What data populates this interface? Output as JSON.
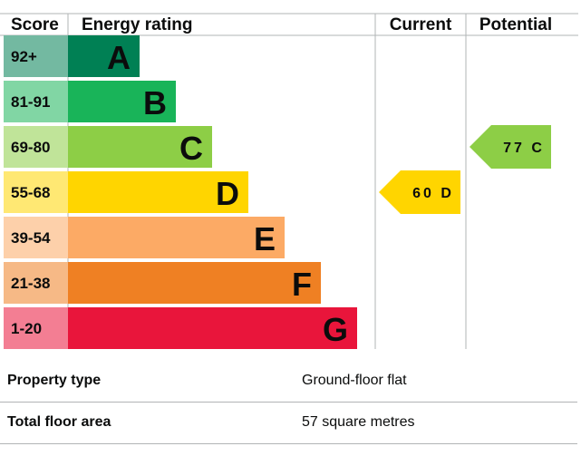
{
  "chart_data": {
    "type": "bar",
    "headers": {
      "score": "Score",
      "rating": "Energy rating",
      "current": "Current",
      "potential": "Potential"
    },
    "bands": [
      {
        "score": "92+",
        "letter": "A",
        "color": "#008054"
      },
      {
        "score": "81-91",
        "letter": "B",
        "color": "#19b459"
      },
      {
        "score": "69-80",
        "letter": "C",
        "color": "#8dce46"
      },
      {
        "score": "55-68",
        "letter": "D",
        "color": "#ffd500"
      },
      {
        "score": "39-54",
        "letter": "E",
        "color": "#fcaa65"
      },
      {
        "score": "21-38",
        "letter": "F",
        "color": "#ef8023"
      },
      {
        "score": "1-20",
        "letter": "G",
        "color": "#e9153b"
      }
    ],
    "current": {
      "value": 60,
      "letter": "D",
      "label": "60 D"
    },
    "potential": {
      "value": 77,
      "letter": "C",
      "label": "77 C"
    }
  },
  "properties": [
    {
      "label": "Property type",
      "value": "Ground-floor flat"
    },
    {
      "label": "Total floor area",
      "value": "57 square metres"
    }
  ]
}
